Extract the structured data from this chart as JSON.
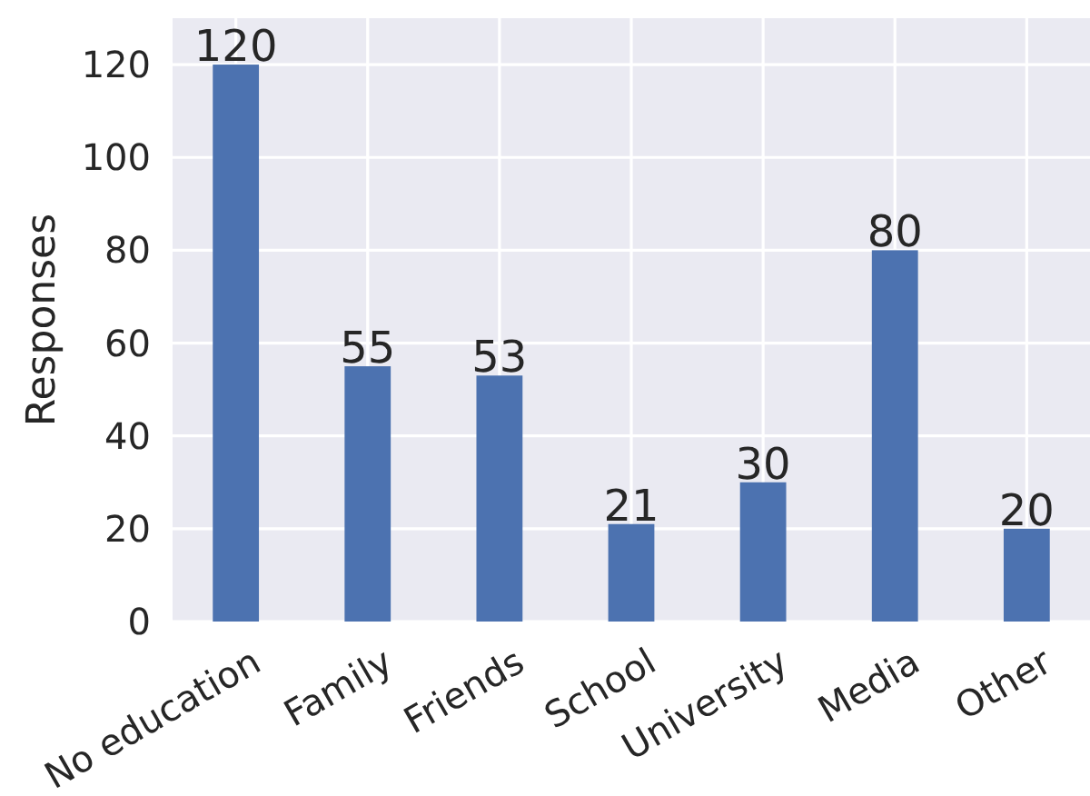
{
  "chart_data": {
    "type": "bar",
    "ylabel": "Responses",
    "categories": [
      "No education",
      "Family",
      "Friends",
      "School",
      "University",
      "Media",
      "Other"
    ],
    "values": [
      120,
      55,
      53,
      21,
      30,
      80,
      20
    ],
    "color": "#4c72b0",
    "ylim": [
      0,
      130
    ],
    "yticks": [
      0,
      20,
      40,
      60,
      80,
      100,
      120
    ],
    "grid": true,
    "data_labels": true
  }
}
